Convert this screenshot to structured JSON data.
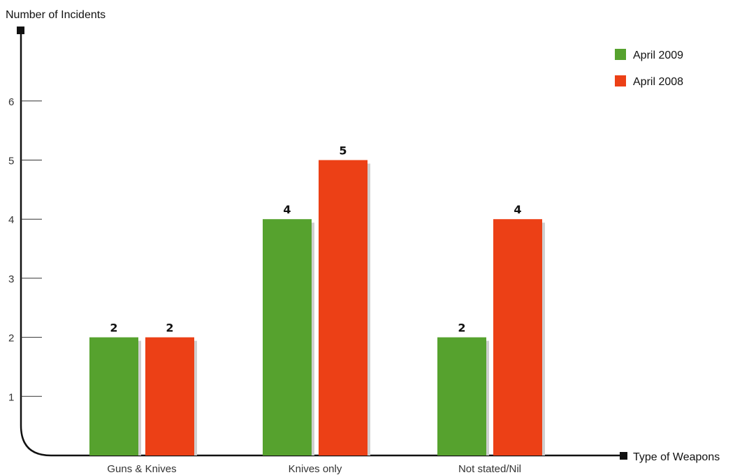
{
  "chart_data": {
    "type": "bar",
    "title": "",
    "ylabel": "Number of Incidents",
    "xlabel": "Type of Weapons",
    "categories": [
      "Guns & Knives",
      "Knives only",
      "Not stated/Nil"
    ],
    "series": [
      {
        "name": "April 2009",
        "color": "#56a22e",
        "values": [
          2,
          4,
          2
        ]
      },
      {
        "name": "April 2008",
        "color": "#ec4016",
        "values": [
          2,
          5,
          4
        ]
      }
    ],
    "yticks": [
      1,
      2,
      3,
      4,
      5,
      6
    ],
    "ylim": [
      0,
      7
    ],
    "grid": false,
    "legend_position": "top-right",
    "colors": {
      "axis": "#111111",
      "bar_shadow": "#cfcfcf"
    }
  }
}
